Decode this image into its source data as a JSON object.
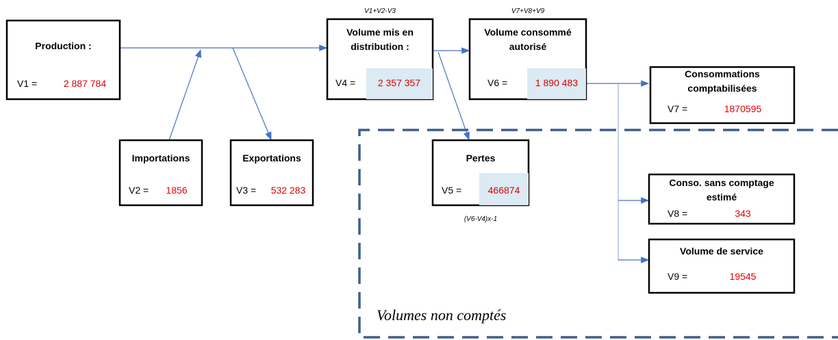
{
  "nodes": [
    {
      "title": [
        "Production :"
      ],
      "var": "V1 =",
      "value": "2 887 784"
    },
    {
      "title": [
        "Importations"
      ],
      "var": "V2 =",
      "value": "1856"
    },
    {
      "title": [
        "Exportations"
      ],
      "var": "V3 =",
      "value": "532 283"
    },
    {
      "title": [
        "Volume mis en",
        "distribution :"
      ],
      "var": "V4 =",
      "value": "2 357 357",
      "formula": "V1+V2-V3"
    },
    {
      "title": [
        "Volume consommé",
        "autorisé"
      ],
      "var": "V6 =",
      "value": "1 890 483",
      "formula": "V7+V8+V9"
    },
    {
      "title": [
        "Consommations",
        "comptabilisées"
      ],
      "var": "V7 =",
      "value": "1870595"
    },
    {
      "title": [
        "Pertes"
      ],
      "var": "V5 =",
      "value": "466874",
      "formula": "(V6-V4)x-1"
    },
    {
      "title": [
        "Conso. sans comptage",
        "estimé"
      ],
      "var": "V8 =",
      "value": "343"
    },
    {
      "title": [
        "Volume de service"
      ],
      "var": "V9 =",
      "value": "19545"
    }
  ],
  "region_label": "Volumes non comptés"
}
